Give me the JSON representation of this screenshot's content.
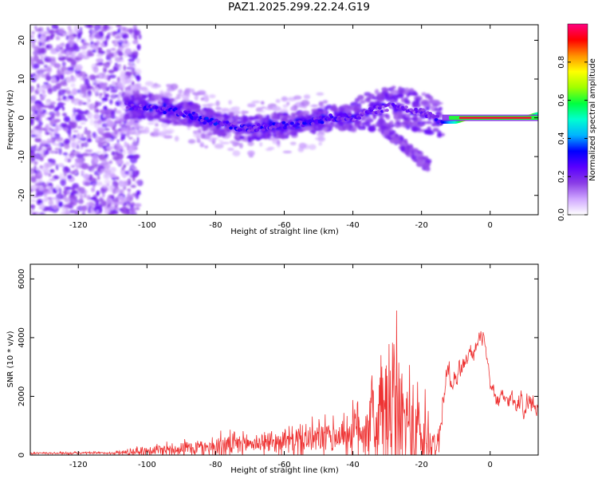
{
  "title": "PAZ1.2025.299.22.24.G19",
  "chart_data": [
    {
      "type": "heatmap",
      "name": "spectrogram",
      "xlabel": "Height of straight line (km)",
      "ylabel": "Frequency (Hz)",
      "xlim": [
        -134,
        14
      ],
      "ylim": [
        -25,
        24
      ],
      "xticks": [
        -120,
        -100,
        -80,
        -60,
        -40,
        -20,
        0
      ],
      "yticks": [
        -20,
        -10,
        0,
        10,
        20
      ],
      "colorbar": {
        "label": "Normalized spectral amplitude",
        "range": [
          0,
          1
        ],
        "ticks": [
          "0.0",
          "0.2",
          "0.4",
          "0.6",
          "0.8"
        ],
        "colormap": [
          "#ffffff",
          "#cfa6ff",
          "#8a3ce6",
          "#5a00ff",
          "#0000ff",
          "#00b4ff",
          "#00ffd0",
          "#00ff40",
          "#a0ff00",
          "#ffff00",
          "#ff9000",
          "#ff0000",
          "#ff0080"
        ]
      },
      "ridge": [
        {
          "x": -106,
          "f": 3,
          "amp": 0.25
        },
        {
          "x": -100,
          "f": 3,
          "amp": 0.3
        },
        {
          "x": -94,
          "f": 2,
          "amp": 0.3
        },
        {
          "x": -88,
          "f": 1,
          "amp": 0.3
        },
        {
          "x": -82,
          "f": -1,
          "amp": 0.35
        },
        {
          "x": -76,
          "f": -2,
          "amp": 0.3
        },
        {
          "x": -70,
          "f": -3,
          "amp": 0.3
        },
        {
          "x": -64,
          "f": -2,
          "amp": 0.3
        },
        {
          "x": -58,
          "f": -2,
          "amp": 0.3
        },
        {
          "x": -52,
          "f": -1,
          "amp": 0.3
        },
        {
          "x": -46,
          "f": 0,
          "amp": 0.3
        },
        {
          "x": -40,
          "f": 0,
          "amp": 0.25
        },
        {
          "x": -34,
          "f": 2,
          "amp": 0.25
        },
        {
          "x": -28,
          "f": 3,
          "amp": 0.25
        },
        {
          "x": -22,
          "f": 2,
          "amp": 0.25
        },
        {
          "x": -18,
          "f": 1,
          "amp": 0.25
        },
        {
          "x": -14,
          "f": -1,
          "amp": 0.3
        },
        {
          "x": -10,
          "f": -1,
          "amp": 0.5
        },
        {
          "x": -6,
          "f": 0,
          "amp": 0.8
        },
        {
          "x": -2,
          "f": 0,
          "amp": 0.9
        },
        {
          "x": 2,
          "f": 0,
          "amp": 0.95
        },
        {
          "x": 6,
          "f": 0,
          "amp": 0.9
        },
        {
          "x": 10,
          "f": 0,
          "amp": 0.8
        },
        {
          "x": 14,
          "f": 1,
          "amp": 0.5
        }
      ]
    },
    {
      "type": "line",
      "name": "snr",
      "xlabel": "Height of straight line (km)",
      "ylabel": "SNR (10 * v/v)",
      "xlim": [
        -134,
        14
      ],
      "ylim": [
        0,
        6500
      ],
      "xticks": [
        -120,
        -100,
        -80,
        -60,
        -40,
        -20,
        0
      ],
      "yticks": [
        0,
        2000,
        4000,
        6000
      ],
      "color": "#ee3333",
      "envelope": {
        "x": [
          -134,
          -110,
          -105,
          -95,
          -85,
          -78,
          -70,
          -62,
          -55,
          -48,
          -42,
          -38,
          -34,
          -31,
          -29,
          -27,
          -25,
          -23,
          -21,
          -19,
          -17,
          -15,
          -13,
          -12,
          -10,
          -8,
          -6,
          -4,
          -2,
          0,
          2,
          4,
          6,
          8,
          10,
          12,
          14
        ],
        "base": [
          60,
          70,
          100,
          200,
          250,
          300,
          400,
          450,
          500,
          600,
          700,
          900,
          1100,
          1300,
          1400,
          1300,
          1100,
          900,
          700,
          500,
          400,
          400,
          2800,
          2800,
          2800,
          3000,
          3400,
          3700,
          4000,
          2300,
          1900,
          1800,
          1900,
          1900,
          1800,
          1800,
          1800
        ],
        "amp": [
          60,
          60,
          200,
          350,
          450,
          650,
          500,
          600,
          800,
          900,
          1000,
          1700,
          2600,
          3700,
          4500,
          4200,
          3600,
          3000,
          2500,
          2600,
          1200,
          800,
          900,
          900,
          900,
          700,
          700,
          700,
          600,
          600,
          700,
          700,
          700,
          800,
          900,
          900,
          900
        ]
      }
    }
  ]
}
